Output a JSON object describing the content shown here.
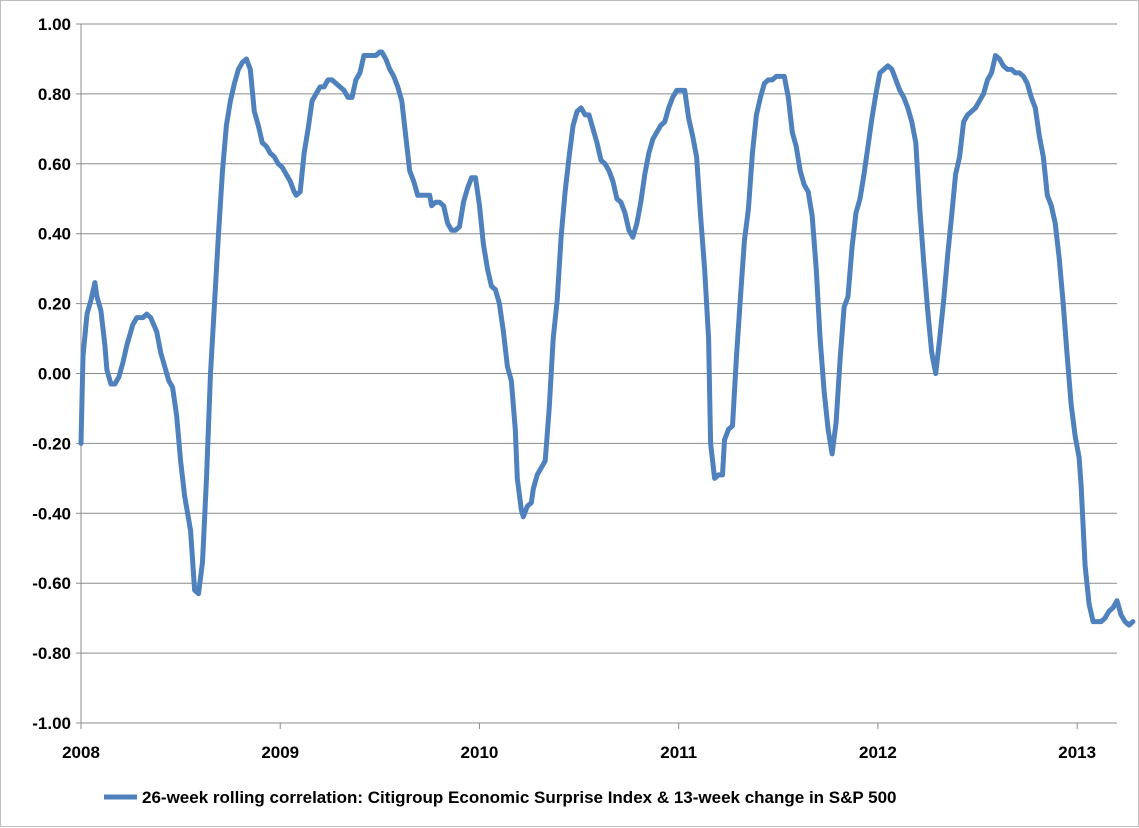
{
  "chart_data": {
    "type": "line",
    "title": "",
    "xlabel": "",
    "ylabel": "",
    "ylim": [
      -1.0,
      1.0
    ],
    "xlim": [
      "2008",
      "2013.2"
    ],
    "y_ticks": [
      "1.00",
      "0.80",
      "0.60",
      "0.40",
      "0.20",
      "0.00",
      "-0.20",
      "-0.40",
      "-0.60",
      "-0.80",
      "-1.00"
    ],
    "x_ticks": [
      "2008",
      "2009",
      "2010",
      "2011",
      "2012",
      "2013"
    ],
    "grid": "horizontal",
    "legend_position": "bottom",
    "series": [
      {
        "name": "26-week rolling correlation: Citigroup Economic Surprise Index & 13-week change in S&P 500",
        "color": "#4f81bd",
        "points": [
          [
            2008.0,
            -0.2
          ],
          [
            2008.01,
            0.05
          ],
          [
            2008.03,
            0.17
          ],
          [
            2008.05,
            0.21
          ],
          [
            2008.07,
            0.26
          ],
          [
            2008.08,
            0.22
          ],
          [
            2008.1,
            0.18
          ],
          [
            2008.12,
            0.08
          ],
          [
            2008.13,
            0.01
          ],
          [
            2008.15,
            -0.03
          ],
          [
            2008.17,
            -0.03
          ],
          [
            2008.19,
            -0.01
          ],
          [
            2008.21,
            0.03
          ],
          [
            2008.23,
            0.08
          ],
          [
            2008.26,
            0.14
          ],
          [
            2008.28,
            0.16
          ],
          [
            2008.31,
            0.16
          ],
          [
            2008.33,
            0.17
          ],
          [
            2008.35,
            0.16
          ],
          [
            2008.38,
            0.12
          ],
          [
            2008.4,
            0.06
          ],
          [
            2008.42,
            0.02
          ],
          [
            2008.44,
            -0.02
          ],
          [
            2008.46,
            -0.04
          ],
          [
            2008.48,
            -0.12
          ],
          [
            2008.5,
            -0.25
          ],
          [
            2008.52,
            -0.35
          ],
          [
            2008.55,
            -0.45
          ],
          [
            2008.57,
            -0.62
          ],
          [
            2008.59,
            -0.63
          ],
          [
            2008.61,
            -0.54
          ],
          [
            2008.63,
            -0.3
          ],
          [
            2008.65,
            0.0
          ],
          [
            2008.67,
            0.2
          ],
          [
            2008.69,
            0.4
          ],
          [
            2008.71,
            0.58
          ],
          [
            2008.73,
            0.71
          ],
          [
            2008.75,
            0.78
          ],
          [
            2008.77,
            0.83
          ],
          [
            2008.79,
            0.87
          ],
          [
            2008.81,
            0.89
          ],
          [
            2008.83,
            0.9
          ],
          [
            2008.85,
            0.87
          ],
          [
            2008.87,
            0.75
          ],
          [
            2008.89,
            0.71
          ],
          [
            2008.91,
            0.66
          ],
          [
            2008.93,
            0.65
          ],
          [
            2008.95,
            0.63
          ],
          [
            2008.97,
            0.62
          ],
          [
            2008.99,
            0.6
          ],
          [
            2009.01,
            0.59
          ],
          [
            2009.03,
            0.57
          ],
          [
            2009.05,
            0.55
          ],
          [
            2009.07,
            0.52
          ],
          [
            2009.08,
            0.51
          ],
          [
            2009.1,
            0.52
          ],
          [
            2009.12,
            0.63
          ],
          [
            2009.14,
            0.7
          ],
          [
            2009.16,
            0.78
          ],
          [
            2009.18,
            0.8
          ],
          [
            2009.2,
            0.82
          ],
          [
            2009.22,
            0.82
          ],
          [
            2009.24,
            0.84
          ],
          [
            2009.26,
            0.84
          ],
          [
            2009.28,
            0.83
          ],
          [
            2009.3,
            0.82
          ],
          [
            2009.32,
            0.81
          ],
          [
            2009.34,
            0.79
          ],
          [
            2009.36,
            0.79
          ],
          [
            2009.38,
            0.84
          ],
          [
            2009.4,
            0.86
          ],
          [
            2009.42,
            0.91
          ],
          [
            2009.44,
            0.91
          ],
          [
            2009.46,
            0.91
          ],
          [
            2009.48,
            0.91
          ],
          [
            2009.5,
            0.92
          ],
          [
            2009.51,
            0.92
          ],
          [
            2009.53,
            0.9
          ],
          [
            2009.55,
            0.87
          ],
          [
            2009.57,
            0.85
          ],
          [
            2009.59,
            0.82
          ],
          [
            2009.61,
            0.78
          ],
          [
            2009.63,
            0.68
          ],
          [
            2009.65,
            0.58
          ],
          [
            2009.67,
            0.55
          ],
          [
            2009.69,
            0.51
          ],
          [
            2009.71,
            0.51
          ],
          [
            2009.73,
            0.51
          ],
          [
            2009.75,
            0.51
          ],
          [
            2009.76,
            0.48
          ],
          [
            2009.78,
            0.49
          ],
          [
            2009.8,
            0.49
          ],
          [
            2009.82,
            0.48
          ],
          [
            2009.84,
            0.43
          ],
          [
            2009.86,
            0.41
          ],
          [
            2009.88,
            0.41
          ],
          [
            2009.9,
            0.42
          ],
          [
            2009.92,
            0.49
          ],
          [
            2009.94,
            0.53
          ],
          [
            2009.96,
            0.56
          ],
          [
            2009.98,
            0.56
          ],
          [
            2010.0,
            0.48
          ],
          [
            2010.02,
            0.37
          ],
          [
            2010.04,
            0.3
          ],
          [
            2010.06,
            0.25
          ],
          [
            2010.08,
            0.24
          ],
          [
            2010.1,
            0.2
          ],
          [
            2010.12,
            0.12
          ],
          [
            2010.14,
            0.02
          ],
          [
            2010.16,
            -0.02
          ],
          [
            2010.18,
            -0.16
          ],
          [
            2010.19,
            -0.3
          ],
          [
            2010.21,
            -0.39
          ],
          [
            2010.22,
            -0.41
          ],
          [
            2010.24,
            -0.38
          ],
          [
            2010.26,
            -0.37
          ],
          [
            2010.27,
            -0.33
          ],
          [
            2010.29,
            -0.29
          ],
          [
            2010.31,
            -0.27
          ],
          [
            2010.33,
            -0.25
          ],
          [
            2010.35,
            -0.1
          ],
          [
            2010.37,
            0.1
          ],
          [
            2010.39,
            0.21
          ],
          [
            2010.41,
            0.39
          ],
          [
            2010.43,
            0.52
          ],
          [
            2010.45,
            0.62
          ],
          [
            2010.47,
            0.71
          ],
          [
            2010.49,
            0.75
          ],
          [
            2010.51,
            0.76
          ],
          [
            2010.53,
            0.74
          ],
          [
            2010.55,
            0.74
          ],
          [
            2010.57,
            0.7
          ],
          [
            2010.59,
            0.66
          ],
          [
            2010.61,
            0.61
          ],
          [
            2010.63,
            0.6
          ],
          [
            2010.65,
            0.58
          ],
          [
            2010.67,
            0.55
          ],
          [
            2010.69,
            0.5
          ],
          [
            2010.71,
            0.49
          ],
          [
            2010.73,
            0.46
          ],
          [
            2010.75,
            0.41
          ],
          [
            2010.77,
            0.39
          ],
          [
            2010.79,
            0.43
          ],
          [
            2010.81,
            0.49
          ],
          [
            2010.83,
            0.57
          ],
          [
            2010.85,
            0.63
          ],
          [
            2010.87,
            0.67
          ],
          [
            2010.89,
            0.69
          ],
          [
            2010.91,
            0.71
          ],
          [
            2010.93,
            0.72
          ],
          [
            2010.95,
            0.76
          ],
          [
            2010.97,
            0.79
          ],
          [
            2010.99,
            0.81
          ],
          [
            2011.01,
            0.81
          ],
          [
            2011.03,
            0.81
          ],
          [
            2011.05,
            0.73
          ],
          [
            2011.07,
            0.68
          ],
          [
            2011.09,
            0.62
          ],
          [
            2011.11,
            0.45
          ],
          [
            2011.13,
            0.3
          ],
          [
            2011.15,
            0.1
          ],
          [
            2011.16,
            -0.2
          ],
          [
            2011.18,
            -0.3
          ],
          [
            2011.2,
            -0.29
          ],
          [
            2011.22,
            -0.29
          ],
          [
            2011.23,
            -0.19
          ],
          [
            2011.25,
            -0.16
          ],
          [
            2011.27,
            -0.15
          ],
          [
            2011.29,
            0.05
          ],
          [
            2011.31,
            0.22
          ],
          [
            2011.33,
            0.38
          ],
          [
            2011.35,
            0.47
          ],
          [
            2011.37,
            0.63
          ],
          [
            2011.39,
            0.74
          ],
          [
            2011.41,
            0.79
          ],
          [
            2011.43,
            0.83
          ],
          [
            2011.45,
            0.84
          ],
          [
            2011.47,
            0.84
          ],
          [
            2011.49,
            0.85
          ],
          [
            2011.51,
            0.85
          ],
          [
            2011.53,
            0.85
          ],
          [
            2011.55,
            0.79
          ],
          [
            2011.57,
            0.69
          ],
          [
            2011.59,
            0.65
          ],
          [
            2011.61,
            0.58
          ],
          [
            2011.63,
            0.54
          ],
          [
            2011.65,
            0.52
          ],
          [
            2011.67,
            0.45
          ],
          [
            2011.69,
            0.3
          ],
          [
            2011.71,
            0.1
          ],
          [
            2011.73,
            -0.05
          ],
          [
            2011.75,
            -0.16
          ],
          [
            2011.77,
            -0.23
          ],
          [
            2011.79,
            -0.14
          ],
          [
            2011.81,
            0.04
          ],
          [
            2011.83,
            0.19
          ],
          [
            2011.85,
            0.22
          ],
          [
            2011.87,
            0.36
          ],
          [
            2011.89,
            0.46
          ],
          [
            2011.91,
            0.5
          ],
          [
            2011.93,
            0.57
          ],
          [
            2011.95,
            0.65
          ],
          [
            2011.97,
            0.73
          ],
          [
            2011.99,
            0.8
          ],
          [
            2012.01,
            0.86
          ],
          [
            2012.03,
            0.87
          ],
          [
            2012.05,
            0.88
          ],
          [
            2012.07,
            0.87
          ],
          [
            2012.09,
            0.84
          ],
          [
            2012.11,
            0.81
          ],
          [
            2012.13,
            0.79
          ],
          [
            2012.15,
            0.76
          ],
          [
            2012.17,
            0.72
          ],
          [
            2012.19,
            0.66
          ],
          [
            2012.21,
            0.47
          ],
          [
            2012.23,
            0.32
          ],
          [
            2012.25,
            0.18
          ],
          [
            2012.27,
            0.06
          ],
          [
            2012.29,
            0.0
          ],
          [
            2012.31,
            0.1
          ],
          [
            2012.33,
            0.21
          ],
          [
            2012.35,
            0.34
          ],
          [
            2012.37,
            0.45
          ],
          [
            2012.39,
            0.57
          ],
          [
            2012.41,
            0.62
          ],
          [
            2012.43,
            0.72
          ],
          [
            2012.45,
            0.74
          ],
          [
            2012.47,
            0.75
          ],
          [
            2012.49,
            0.76
          ],
          [
            2012.51,
            0.78
          ],
          [
            2012.53,
            0.8
          ],
          [
            2012.55,
            0.84
          ],
          [
            2012.57,
            0.86
          ],
          [
            2012.59,
            0.91
          ],
          [
            2012.61,
            0.9
          ],
          [
            2012.63,
            0.88
          ],
          [
            2012.65,
            0.87
          ],
          [
            2012.67,
            0.87
          ],
          [
            2012.69,
            0.86
          ],
          [
            2012.71,
            0.86
          ],
          [
            2012.73,
            0.85
          ],
          [
            2012.75,
            0.83
          ],
          [
            2012.77,
            0.79
          ],
          [
            2012.79,
            0.76
          ],
          [
            2012.81,
            0.68
          ],
          [
            2012.83,
            0.62
          ],
          [
            2012.85,
            0.51
          ],
          [
            2012.87,
            0.48
          ],
          [
            2012.89,
            0.43
          ],
          [
            2012.91,
            0.33
          ],
          [
            2012.93,
            0.2
          ],
          [
            2012.95,
            0.05
          ],
          [
            2012.97,
            -0.09
          ],
          [
            2012.99,
            -0.18
          ],
          [
            2013.01,
            -0.24
          ],
          [
            2013.02,
            -0.32
          ],
          [
            2013.04,
            -0.55
          ],
          [
            2013.06,
            -0.66
          ],
          [
            2013.08,
            -0.71
          ],
          [
            2013.1,
            -0.71
          ],
          [
            2013.12,
            -0.71
          ],
          [
            2013.14,
            -0.7
          ],
          [
            2013.16,
            -0.68
          ],
          [
            2013.18,
            -0.67
          ],
          [
            2013.2,
            -0.65
          ],
          [
            2013.22,
            -0.69
          ],
          [
            2013.24,
            -0.71
          ],
          [
            2013.26,
            -0.72
          ],
          [
            2013.28,
            -0.71
          ]
        ]
      }
    ]
  }
}
